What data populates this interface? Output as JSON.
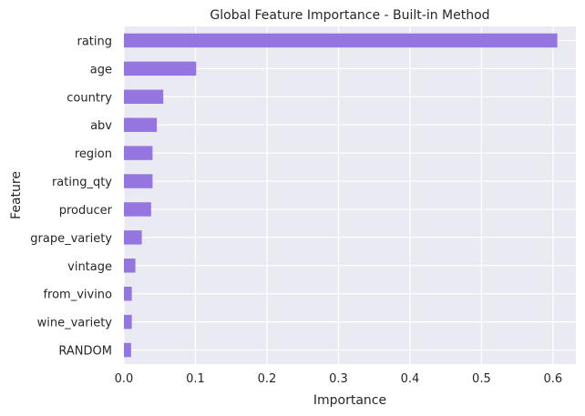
{
  "chart_data": {
    "type": "bar",
    "orientation": "horizontal",
    "title": "Global Feature Importance - Built-in Method",
    "xlabel": "Importance",
    "ylabel": "Feature",
    "categories": [
      "rating",
      "age",
      "country",
      "abv",
      "region",
      "rating_qty",
      "producer",
      "grape_variety",
      "vintage",
      "from_vivino",
      "wine_variety",
      "RANDOM"
    ],
    "values": [
      0.606,
      0.101,
      0.055,
      0.046,
      0.04,
      0.04,
      0.038,
      0.025,
      0.016,
      0.011,
      0.011,
      0.01
    ],
    "xlim": [
      0,
      0.632
    ],
    "xticks": [
      0.0,
      0.1,
      0.2,
      0.3,
      0.4,
      0.5,
      0.6
    ],
    "xtick_labels": [
      "0.0",
      "0.1",
      "0.2",
      "0.3",
      "0.4",
      "0.5",
      "0.6"
    ],
    "grid": true,
    "legend": "none",
    "colors": {
      "bar": "#9575e0",
      "background": "#eaeaf2",
      "grid": "#ffffff",
      "text": "#262626"
    }
  }
}
